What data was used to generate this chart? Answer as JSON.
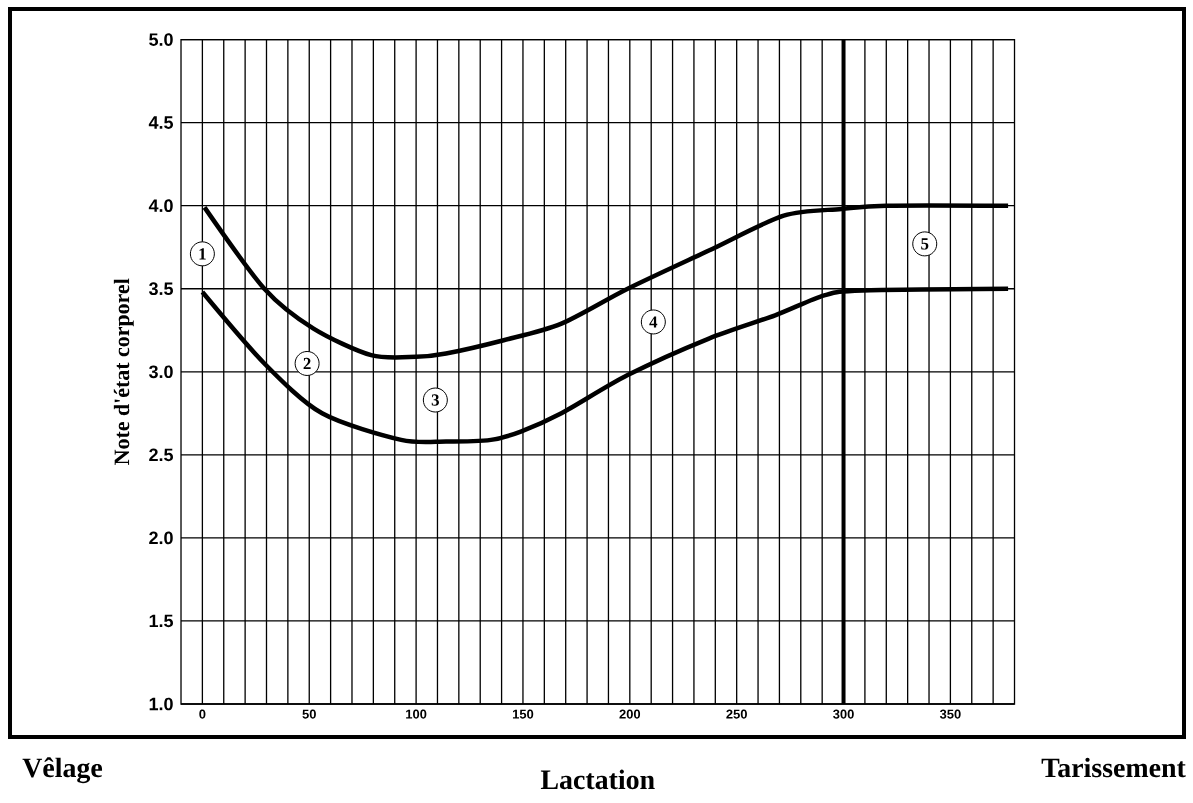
{
  "chart_data": {
    "type": "line",
    "ylabel": "Note d'état corporel",
    "xlabel": "Lactation",
    "xlim": [
      -10,
      380
    ],
    "ylim": [
      1,
      5
    ],
    "xticks": [
      {
        "value": 0,
        "label": "0"
      },
      {
        "value": 10,
        "label": null
      },
      {
        "value": 20,
        "label": null
      },
      {
        "value": 30,
        "label": null
      },
      {
        "value": 40,
        "label": null
      },
      {
        "value": 50,
        "label": "50"
      },
      {
        "value": 60,
        "label": null
      },
      {
        "value": 70,
        "label": null
      },
      {
        "value": 80,
        "label": null
      },
      {
        "value": 90,
        "label": null
      },
      {
        "value": 100,
        "label": "100"
      },
      {
        "value": 110,
        "label": null
      },
      {
        "value": 120,
        "label": null
      },
      {
        "value": 130,
        "label": null
      },
      {
        "value": 140,
        "label": null
      },
      {
        "value": 150,
        "label": "150"
      },
      {
        "value": 160,
        "label": null
      },
      {
        "value": 170,
        "label": null
      },
      {
        "value": 180,
        "label": null
      },
      {
        "value": 190,
        "label": null
      },
      {
        "value": 200,
        "label": "200"
      },
      {
        "value": 210,
        "label": null
      },
      {
        "value": 220,
        "label": null
      },
      {
        "value": 230,
        "label": null
      },
      {
        "value": 240,
        "label": null
      },
      {
        "value": 250,
        "label": "250"
      },
      {
        "value": 260,
        "label": null
      },
      {
        "value": 270,
        "label": null
      },
      {
        "value": 280,
        "label": null
      },
      {
        "value": 290,
        "label": null
      },
      {
        "value": 300,
        "label": "300"
      },
      {
        "value": 310,
        "label": null
      },
      {
        "value": 320,
        "label": null
      },
      {
        "value": 330,
        "label": null
      },
      {
        "value": 340,
        "label": null
      },
      {
        "value": 350,
        "label": "350"
      },
      {
        "value": 360,
        "label": null
      },
      {
        "value": 370,
        "label": null
      }
    ],
    "yticks": [
      {
        "value": 1,
        "label": "1.0"
      },
      {
        "value": 1.5,
        "label": "1.5"
      },
      {
        "value": 2,
        "label": "2.0"
      },
      {
        "value": 2.5,
        "label": "2.5"
      },
      {
        "value": 3,
        "label": "3.0"
      },
      {
        "value": 3.5,
        "label": "3.5"
      },
      {
        "value": 4,
        "label": "4.0"
      },
      {
        "value": 4.5,
        "label": "4.5"
      },
      {
        "value": 5,
        "label": "5.0"
      }
    ],
    "grid": true,
    "series": [
      {
        "color": "#000000",
        "x": [
          1,
          29,
          52,
          79,
          100,
          114,
          141,
          168,
          199,
          237,
          272,
          299,
          320,
          377
        ],
        "values": [
          3.99,
          3.5,
          3.26,
          3.1,
          3.09,
          3.11,
          3.19,
          3.29,
          3.5,
          3.73,
          3.94,
          3.98,
          4.0,
          4.0
        ]
      },
      {
        "color": "#000000",
        "x": [
          0,
          29,
          56,
          93,
          114,
          135,
          149,
          168,
          199,
          237,
          268,
          291,
          309,
          377
        ],
        "values": [
          3.48,
          3.05,
          2.75,
          2.59,
          2.58,
          2.59,
          2.64,
          2.75,
          2.98,
          3.2,
          3.34,
          3.46,
          3.49,
          3.5
        ]
      }
    ],
    "ref_lines": [
      {
        "axis": "x",
        "value": 300
      }
    ],
    "annotations": [
      {
        "text": "1",
        "x": 0,
        "y": 3.71
      },
      {
        "text": "2",
        "x": 49,
        "y": 3.05
      },
      {
        "text": "3",
        "x": 109,
        "y": 2.83
      },
      {
        "text": "4",
        "x": 211,
        "y": 3.3
      },
      {
        "text": "5",
        "x": 338,
        "y": 3.77
      },
      "Vêlage",
      "Tarissement"
    ]
  }
}
